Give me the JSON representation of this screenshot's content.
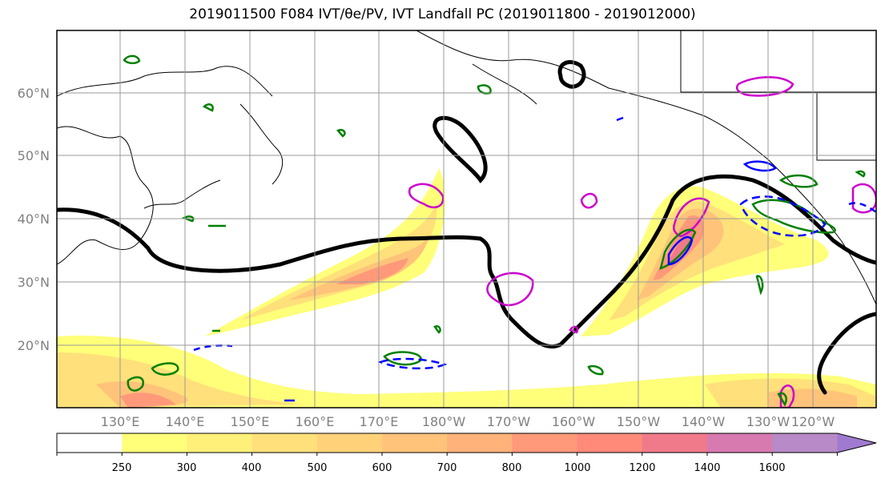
{
  "title": "2019011500 F084 IVT/θe/PV, IVT Landfall PC (2019011800 - 2019012000)",
  "lat_labels": [
    "60°N",
    "50°N",
    "40°N",
    "30°N",
    "20°N"
  ],
  "lon_labels": [
    "130°E",
    "140°E",
    "150°E",
    "160°E",
    "170°E",
    "180°W",
    "170°W",
    "160°W",
    "150°W",
    "140°W",
    "130°W",
    "120°W"
  ],
  "colorbar": {
    "levels": [
      "250",
      "300",
      "400",
      "500",
      "600",
      "700",
      "800",
      "1000",
      "1200",
      "1400",
      "1600"
    ],
    "colors": [
      "#ffff7a",
      "#fff07a",
      "#ffe07a",
      "#ffd27a",
      "#ffc37a",
      "#ffb27a",
      "#ff997a",
      "#ff8a7a",
      "#f07a8a",
      "#d77ab0",
      "#b88ac7",
      "#a07ad0"
    ]
  },
  "colors": {
    "landfall_contour": "#000000",
    "green_contours": "#008000",
    "magenta_contours": "#cc00cc",
    "blue_contours": "#0000ff"
  }
}
